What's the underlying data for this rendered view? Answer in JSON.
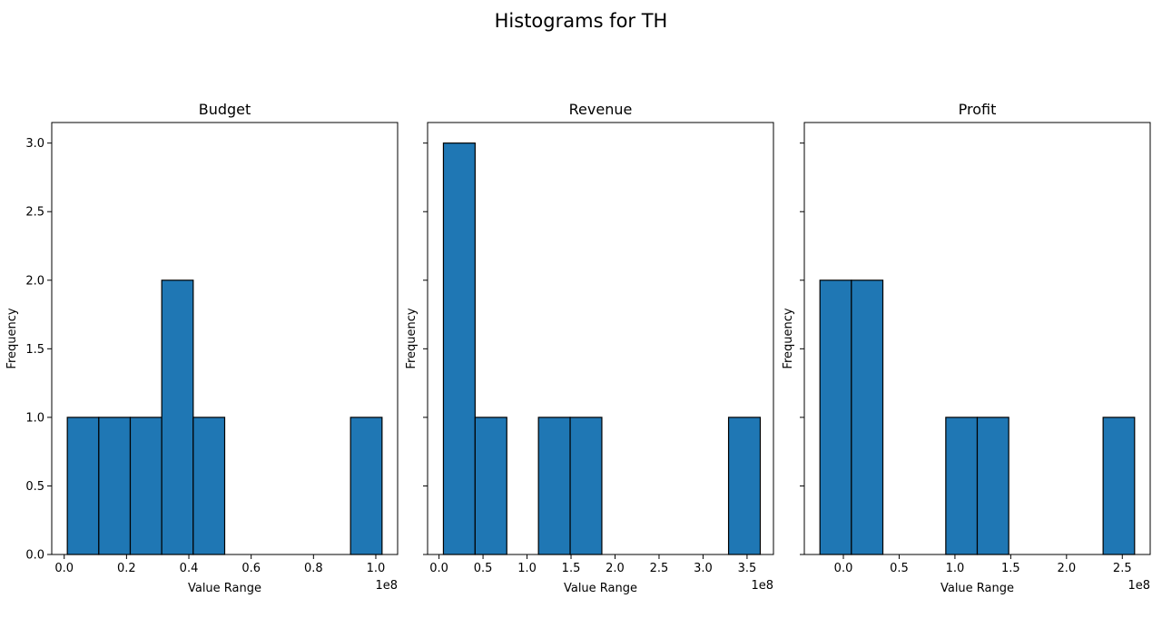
{
  "figure": {
    "suptitle": "Histograms for TH"
  },
  "chart_data": [
    {
      "type": "bar",
      "title": "Budget",
      "xlabel": "Value Range",
      "ylabel": "Frequency",
      "offset_label": "1e8",
      "xlim": [
        -0.04,
        1.07
      ],
      "ylim": [
        0,
        3.15
      ],
      "xticks": [
        0.0,
        0.2,
        0.4,
        0.6,
        0.8,
        1.0
      ],
      "xtick_labels": [
        "0.0",
        "0.2",
        "0.4",
        "0.6",
        "0.8",
        "1.0"
      ],
      "yticks": [
        0.0,
        0.5,
        1.0,
        1.5,
        2.0,
        2.5,
        3.0
      ],
      "ytick_labels": [
        "0.0",
        "0.5",
        "1.0",
        "1.5",
        "2.0",
        "2.5",
        "3.0"
      ],
      "bin_edges": [
        0.01,
        0.111,
        0.212,
        0.313,
        0.414,
        0.515,
        0.616,
        0.717,
        0.818,
        0.919,
        1.02
      ],
      "values": [
        1,
        1,
        1,
        2,
        1,
        0,
        0,
        0,
        0,
        1
      ],
      "color": "#1f77b4",
      "edgecolor": "#000000"
    },
    {
      "type": "bar",
      "title": "Revenue",
      "xlabel": "Value Range",
      "ylabel": "",
      "offset_label": "1e8",
      "xlim": [
        -0.13,
        3.8
      ],
      "ylim": [
        0,
        3.15
      ],
      "xticks": [
        0.0,
        0.5,
        1.0,
        1.5,
        2.0,
        2.5,
        3.0,
        3.5
      ],
      "xtick_labels": [
        "0.0",
        "0.5",
        "1.0",
        "1.5",
        "2.0",
        "2.5",
        "3.0",
        "3.5"
      ],
      "yticks": [
        0.0,
        0.5,
        1.0,
        1.5,
        2.0,
        2.5,
        3.0
      ],
      "ytick_labels": [],
      "bin_edges": [
        0.05,
        0.41,
        0.77,
        1.13,
        1.49,
        1.85,
        2.21,
        2.57,
        2.93,
        3.29,
        3.65
      ],
      "values": [
        3,
        1,
        0,
        1,
        1,
        0,
        0,
        0,
        0,
        1
      ],
      "color": "#1f77b4",
      "edgecolor": "#000000"
    },
    {
      "type": "bar",
      "title": "Profit",
      "xlabel": "Value Range",
      "ylabel": "",
      "offset_label": "1e8",
      "xlim": [
        -0.35,
        2.75
      ],
      "ylim": [
        0,
        3.15
      ],
      "xticks": [
        0.0,
        0.5,
        1.0,
        1.5,
        2.0,
        2.5
      ],
      "xtick_labels": [
        "0.0",
        "0.5",
        "1.0",
        "1.5",
        "2.0",
        "2.5"
      ],
      "yticks": [
        0.0,
        0.5,
        1.0,
        1.5,
        2.0,
        2.5,
        3.0
      ],
      "ytick_labels": [],
      "bin_edges": [
        -0.21,
        0.072,
        0.354,
        0.636,
        0.918,
        1.2,
        1.482,
        1.764,
        2.046,
        2.328,
        2.61
      ],
      "values": [
        2,
        2,
        0,
        0,
        1,
        1,
        0,
        0,
        0,
        1
      ],
      "color": "#1f77b4",
      "edgecolor": "#000000"
    }
  ],
  "shared_ylabel": "Frequency"
}
